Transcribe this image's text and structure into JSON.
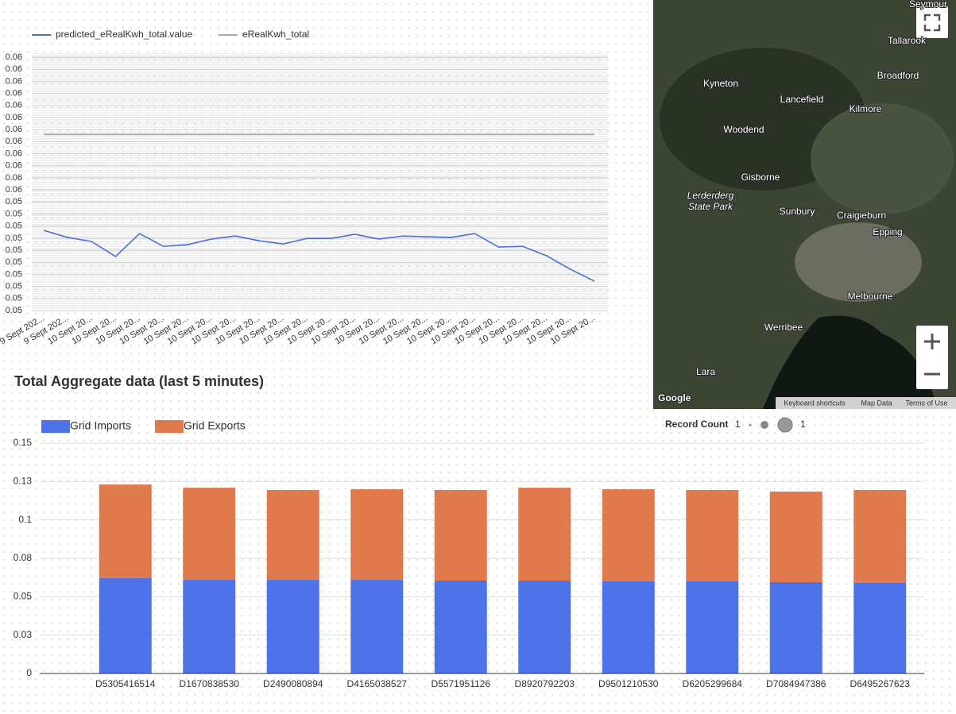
{
  "chart_data": [
    {
      "type": "line",
      "categories": [
        "9 Sept 202...",
        "9 Sept 202...",
        "10 Sept 20...",
        "10 Sept 20...",
        "10 Sept 20...",
        "10 Sept 20...",
        "10 Sept 20...",
        "10 Sept 20...",
        "10 Sept 20...",
        "10 Sept 20...",
        "10 Sept 20...",
        "10 Sept 20...",
        "10 Sept 20...",
        "10 Sept 20...",
        "10 Sept 20...",
        "10 Sept 20...",
        "10 Sept 20...",
        "10 Sept 20...",
        "10 Sept 20...",
        "10 Sept 20...",
        "10 Sept 20...",
        "10 Sept 20...",
        "10 Sept 20...",
        "10 Sept 20..."
      ],
      "series": [
        {
          "name": "predicted_eRealKwh_total.value",
          "color": "#4a6fdc",
          "values": [
            0.05332,
            0.05303,
            0.05286,
            0.05224,
            0.05319,
            0.05266,
            0.05273,
            0.05296,
            0.05309,
            0.05289,
            0.05276,
            0.05299,
            0.05299,
            0.05316,
            0.05296,
            0.05309,
            0.05306,
            0.05303,
            0.05319,
            0.05263,
            0.05266,
            0.05227,
            0.05171,
            0.05122
          ]
        },
        {
          "name": "eRealKwh_total",
          "color": "#aaaaaa",
          "values": [
            0.0573,
            0.0573,
            0.0573,
            0.0573,
            0.0573,
            0.0573,
            0.0573,
            0.0573,
            0.0573,
            0.0573,
            0.0573,
            0.0573,
            0.0573,
            0.0573,
            0.0573,
            0.0573,
            0.0573,
            0.0573,
            0.0573,
            0.0573,
            0.0573,
            0.0573,
            0.0573,
            0.0573
          ]
        }
      ],
      "ylim": [
        0.05,
        0.0605
      ],
      "yticks": [
        {
          "value": 0.05,
          "label": "0.05"
        },
        {
          "value": 0.0505,
          "label": "0.05"
        },
        {
          "value": 0.051,
          "label": "0.05"
        },
        {
          "value": 0.0515,
          "label": "0.05"
        },
        {
          "value": 0.052,
          "label": "0.05"
        },
        {
          "value": 0.0525,
          "label": "0.05"
        },
        {
          "value": 0.053,
          "label": "0.05"
        },
        {
          "value": 0.0535,
          "label": "0.05"
        },
        {
          "value": 0.054,
          "label": "0.05"
        },
        {
          "value": 0.0545,
          "label": "0.05"
        },
        {
          "value": 0.055,
          "label": "0.06"
        },
        {
          "value": 0.0555,
          "label": "0.06"
        },
        {
          "value": 0.056,
          "label": "0.06"
        },
        {
          "value": 0.0565,
          "label": "0.06"
        },
        {
          "value": 0.057,
          "label": "0.06"
        },
        {
          "value": 0.0575,
          "label": "0.06"
        },
        {
          "value": 0.058,
          "label": "0.06"
        },
        {
          "value": 0.0585,
          "label": "0.06"
        },
        {
          "value": 0.059,
          "label": "0.06"
        },
        {
          "value": 0.0595,
          "label": "0.06"
        },
        {
          "value": 0.06,
          "label": "0.06"
        },
        {
          "value": 0.0605,
          "label": "0.06"
        }
      ],
      "grid": true,
      "legend": "top-left"
    },
    {
      "type": "bar",
      "stacked": true,
      "title": "Total Aggregate data (last 5 minutes)",
      "categories": [
        "D5305416514",
        "D1670838530",
        "D2490080894",
        "D4165038527",
        "D5571951126",
        "D8920792203",
        "D9501210530",
        "D6205299684",
        "D7084947386",
        "D6495267623"
      ],
      "series": [
        {
          "name": "Grid Imports",
          "color": "#4e73e8",
          "values": [
            0.0621,
            0.061,
            0.061,
            0.061,
            0.0605,
            0.0605,
            0.06,
            0.06,
            0.0595,
            0.059
          ]
        },
        {
          "name": "Grid Exports",
          "color": "#e07a4c",
          "values": [
            0.061,
            0.06,
            0.0585,
            0.059,
            0.059,
            0.0605,
            0.06,
            0.0595,
            0.059,
            0.0605
          ]
        }
      ],
      "ylim": [
        0,
        0.15
      ],
      "yticks": [
        0,
        {
          "value": 0.025,
          "label": "0.03"
        },
        0.05,
        {
          "value": 0.075,
          "label": "0.08"
        },
        0.1,
        {
          "value": 0.125,
          "label": "0.13"
        },
        0.15
      ],
      "grid": true,
      "legend": "top-left",
      "size_legend": {
        "title": "Record Count",
        "labels": [
          "1",
          "1"
        ]
      }
    }
  ],
  "map": {
    "places": [
      "Seymour",
      "Tallarook",
      "Kyneton",
      "Broadford",
      "Lancefield",
      "Kilmore",
      "Woodend",
      "Gisborne",
      "Lerderderg",
      "State Park",
      "Sunbury",
      "Craigieburn",
      "Epping",
      "Melbourne",
      "Werribee",
      "Lara"
    ],
    "logo": "Google",
    "footer": [
      "Keyboard shortcuts",
      "Map Data",
      "Terms of Use"
    ]
  }
}
